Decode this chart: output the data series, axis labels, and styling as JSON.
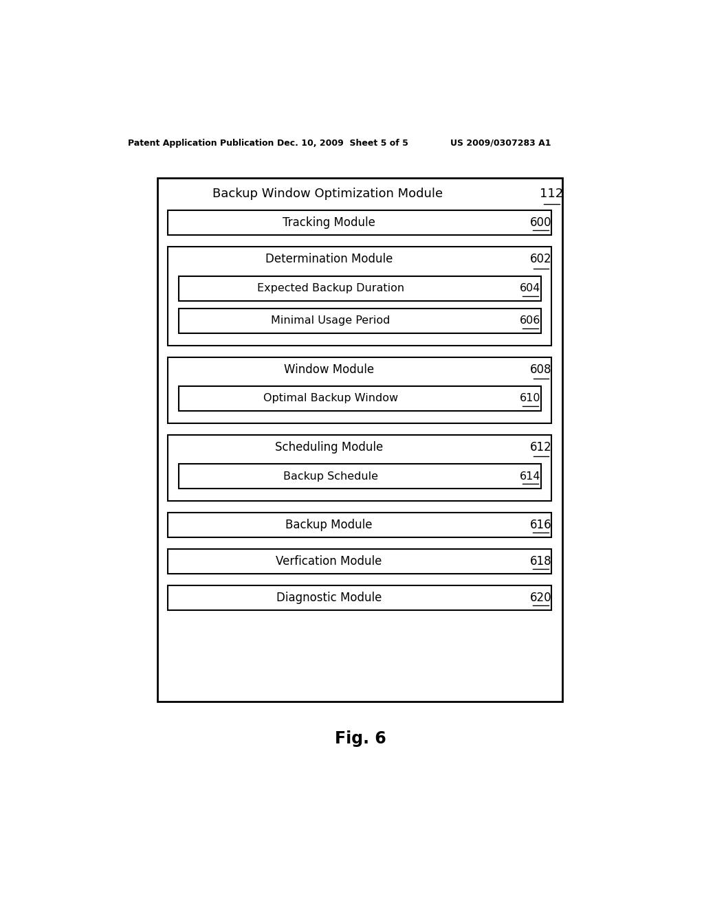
{
  "header_left": "Patent Application Publication",
  "header_mid": "Dec. 10, 2009  Sheet 5 of 5",
  "header_right": "US 2009/0307283 A1",
  "fig_label": "Fig. 6",
  "bg_color": "#ffffff",
  "outer_box": {
    "label": "Backup Window Optimization Module",
    "number": "112"
  },
  "boxes": [
    {
      "label": "Tracking Module",
      "number": "600",
      "children": []
    },
    {
      "label": "Determination Module",
      "number": "602",
      "children": [
        {
          "label": "Expected Backup Duration",
          "number": "604"
        },
        {
          "label": "Minimal Usage Period",
          "number": "606"
        }
      ]
    },
    {
      "label": "Window Module",
      "number": "608",
      "children": [
        {
          "label": "Optimal Backup Window",
          "number": "610"
        }
      ]
    },
    {
      "label": "Scheduling Module",
      "number": "612",
      "children": [
        {
          "label": "Backup Schedule",
          "number": "614"
        }
      ]
    },
    {
      "label": "Backup Module",
      "number": "616",
      "children": []
    },
    {
      "label": "Verfication Module",
      "number": "618",
      "children": []
    },
    {
      "label": "Diagnostic Module",
      "number": "620",
      "children": []
    }
  ]
}
